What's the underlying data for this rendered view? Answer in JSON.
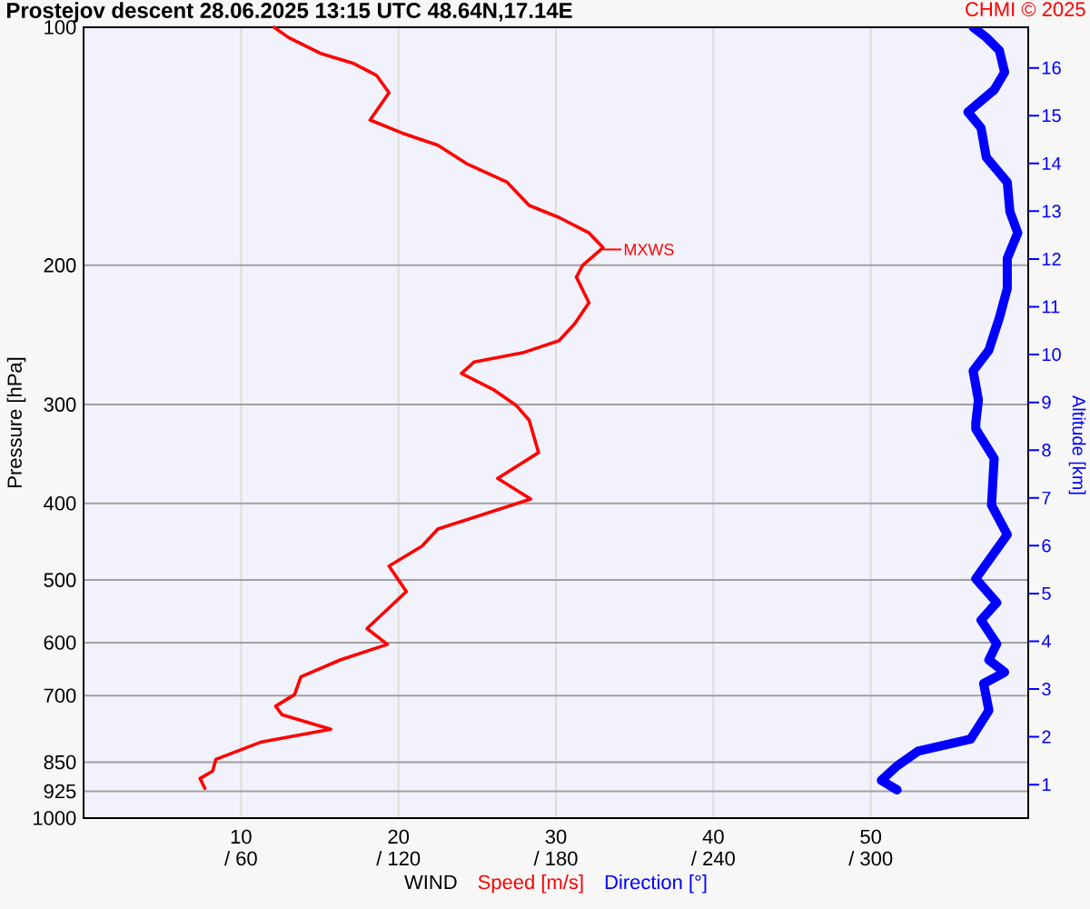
{
  "chart_data": {
    "type": "line",
    "title": "Prostejov descent 28.06.2025 13:15 UTC 48.64N,17.14E",
    "xlabel": "WIND",
    "ylabel": "Pressure [hPa]",
    "y2label": "Altitude [km]",
    "xlim": [
      0,
      60
    ],
    "xticks": [
      10,
      20,
      30,
      40,
      50
    ],
    "x2lim": [
      0,
      360
    ],
    "x2ticks": [
      {
        "value": 60,
        "label": "/ 60"
      },
      {
        "value": 120,
        "label": "/ 120"
      },
      {
        "value": 180,
        "label": "/ 180"
      },
      {
        "value": 240,
        "label": "/ 240"
      },
      {
        "value": 300,
        "label": "/ 300"
      }
    ],
    "ylim": [
      1000,
      100
    ],
    "log": "y",
    "yticks": [
      100,
      200,
      300,
      400,
      500,
      600,
      700,
      850,
      925,
      1000
    ],
    "y2lim": [
      0.3,
      16.85
    ],
    "y2ticks": [
      1,
      2,
      3,
      4,
      5,
      6,
      7,
      8,
      9,
      10,
      11,
      12,
      13,
      14,
      15,
      16
    ],
    "grid": true,
    "legend": "bottom",
    "marker": "none",
    "line_style": "solid",
    "series": [
      {
        "name": "Speed [m/s]",
        "color": "#ff0000",
        "x": [
          12.1,
          13.0,
          15.1,
          17.1,
          18.6,
          19.4,
          18.2,
          20.2,
          22.5,
          24.4,
          26.9,
          28.3,
          30.2,
          32.1,
          33.0,
          31.7,
          31.3,
          32.1,
          31.2,
          30.2,
          27.9,
          24.8,
          24.0,
          26.0,
          27.5,
          28.3,
          28.9,
          26.3,
          28.4,
          22.5,
          21.5,
          19.4,
          20.5,
          18.0,
          19.3,
          16.3,
          13.8,
          13.4,
          12.2,
          12.6,
          15.7,
          11.3,
          8.4,
          8.2,
          7.4,
          7.7
        ],
        "values": [
          100,
          103,
          108,
          111,
          115,
          121,
          131,
          136,
          141,
          149,
          157,
          168,
          174,
          182,
          190,
          200,
          207,
          223,
          237,
          249,
          258,
          265,
          274,
          287,
          301,
          314,
          345,
          372,
          395,
          431,
          453,
          480,
          517,
          576,
          603,
          631,
          663,
          698,
          722,
          740,
          772,
          801,
          843,
          872,
          891,
          917
        ]
      },
      {
        "name": "Direction [°]",
        "color": "#0000ff",
        "axis": "x2",
        "x": [
          339,
          344,
          349,
          351,
          347,
          337,
          342,
          344,
          352,
          353,
          356,
          352,
          352,
          349,
          345,
          339,
          341,
          340,
          340,
          347,
          346,
          352,
          340,
          348,
          342,
          348,
          345,
          351,
          343,
          345,
          338,
          318,
          310,
          304,
          310
        ],
        "values": [
          100,
          103,
          107,
          114,
          120,
          128,
          134,
          146,
          157,
          171,
          182,
          196,
          214,
          233,
          256,
          272,
          296,
          317,
          322,
          351,
          402,
          438,
          498,
          534,
          562,
          602,
          631,
          654,
          676,
          731,
          795,
          823,
          859,
          896,
          921
        ]
      }
    ],
    "annotations": [
      "CHMI © 2025",
      {
        "text": "MXWS",
        "x": 33,
        "y": 191
      }
    ]
  }
}
